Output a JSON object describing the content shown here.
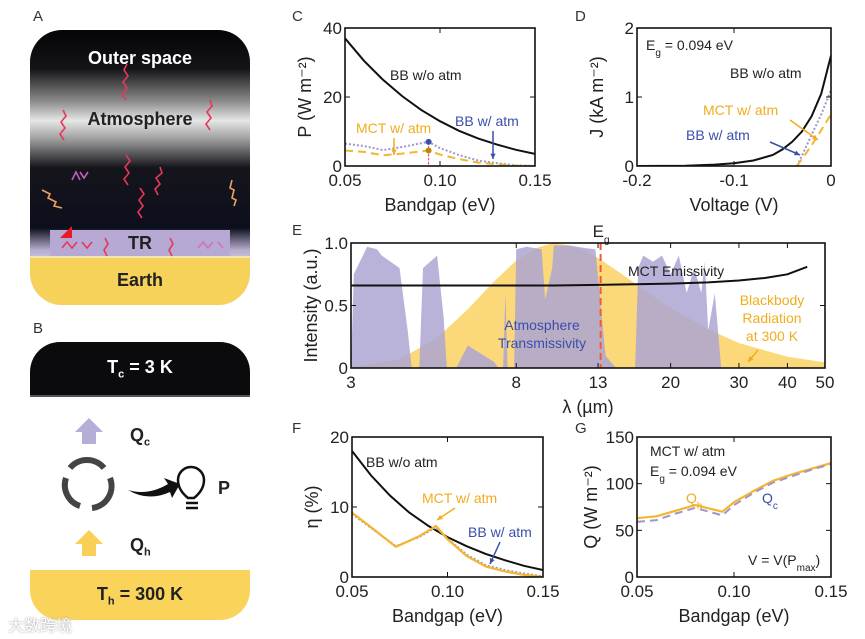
{
  "panel_letters": {
    "a": "A",
    "b": "B",
    "c": "C",
    "d": "D",
    "e": "E",
    "f": "F",
    "g": "G"
  },
  "panel_a": {
    "outer_space": "Outer space",
    "atmosphere": "Atmosphere",
    "tr": "TR",
    "earth": "Earth"
  },
  "panel_b": {
    "tc_main": "T",
    "tc_sub": "c",
    "tc_rest": " = 3 K",
    "th_main": "T",
    "th_sub": "h",
    "th_rest": " = 300 K",
    "qc_main": "Q",
    "qc_sub": "c",
    "qh_main": "Q",
    "qh_sub": "h",
    "p": "P"
  },
  "watermark": "大数跨境",
  "colors": {
    "black": "#111111",
    "mct": "#f4b531",
    "bbatm": "#9f97cc",
    "bbatm_text": "#3b4eab",
    "eg": "#ee5a3c",
    "bb_fill": "#fbd87a",
    "atm_fill": "#ada6d2"
  },
  "chart_data": [
    {
      "id": "C",
      "type": "line",
      "xlabel": "Bandgap (eV)",
      "ylabel": "P (W m⁻²)",
      "xlim": [
        0.05,
        0.15
      ],
      "ylim": [
        0,
        40
      ],
      "xticks": [
        0.05,
        0.1,
        0.15
      ],
      "xticklabels": [
        "0.05",
        "0.10",
        "0.15"
      ],
      "yticks": [
        0,
        20,
        40
      ],
      "yticklabels": [
        "0",
        "20",
        "40"
      ],
      "series": [
        {
          "name": "BB w/o atm",
          "style": "solid",
          "color": "#111111",
          "x": [
            0.05,
            0.06,
            0.07,
            0.08,
            0.09,
            0.1,
            0.11,
            0.12,
            0.13,
            0.14,
            0.15
          ],
          "y": [
            37,
            30.5,
            25,
            20.3,
            16.3,
            13,
            10.2,
            8,
            6.2,
            4.7,
            3.5
          ]
        },
        {
          "name": "BB w/ atm",
          "style": "dotted",
          "color": "#9f97cc",
          "x": [
            0.05,
            0.06,
            0.07,
            0.08,
            0.094,
            0.1,
            0.11,
            0.12,
            0.13,
            0.14,
            0.15
          ],
          "y": [
            6.5,
            5.8,
            4.6,
            5.5,
            7,
            5.2,
            3.2,
            1.6,
            0.8,
            0.2,
            0
          ]
        },
        {
          "name": "MCT w/ atm",
          "style": "dashed",
          "color": "#f4b531",
          "x": [
            0.05,
            0.06,
            0.07,
            0.08,
            0.094,
            0.1,
            0.11,
            0.12,
            0.13,
            0.14,
            0.15
          ],
          "y": [
            4.5,
            4.1,
            3.1,
            3.6,
            4.5,
            3.3,
            2,
            1,
            0.5,
            0.1,
            0
          ]
        }
      ],
      "markers": [
        {
          "x": 0.094,
          "y": 7,
          "color": "#3b4eab"
        },
        {
          "x": 0.094,
          "y": 4.5,
          "color": "#b8860b"
        }
      ],
      "annotations": {
        "bb_wo": "BB w/o atm",
        "bb_w": "BB w/ atm",
        "mct": "MCT w/ atm"
      }
    },
    {
      "id": "D",
      "type": "line",
      "xlabel": "Voltage (V)",
      "ylabel": "J (kA m⁻²)",
      "xlim": [
        -0.2,
        0
      ],
      "ylim": [
        0,
        2
      ],
      "xticks": [
        -0.2,
        -0.1,
        0
      ],
      "xticklabels": [
        "-0.2",
        "-0.1",
        "0"
      ],
      "yticks": [
        0,
        1,
        2
      ],
      "yticklabels": [
        "0",
        "1",
        "2"
      ],
      "series": [
        {
          "name": "BB w/o atm",
          "style": "solid",
          "color": "#111111",
          "x": [
            -0.2,
            -0.15,
            -0.12,
            -0.1,
            -0.08,
            -0.06,
            -0.05,
            -0.04,
            -0.03,
            -0.02,
            -0.01,
            0
          ],
          "y": [
            0,
            0.005,
            0.02,
            0.04,
            0.08,
            0.16,
            0.24,
            0.35,
            0.5,
            0.72,
            1.05,
            1.6
          ]
        },
        {
          "name": "BB w/ atm",
          "style": "dotted",
          "color": "#9f97cc",
          "x": [
            -0.035,
            -0.03,
            -0.02,
            -0.01,
            0
          ],
          "y": [
            0,
            0.15,
            0.45,
            0.75,
            1.1
          ]
        },
        {
          "name": "MCT w/ atm",
          "style": "dashed",
          "color": "#f4b531",
          "x": [
            -0.035,
            -0.03,
            -0.02,
            -0.01,
            0
          ],
          "y": [
            0,
            0.1,
            0.3,
            0.52,
            0.75
          ]
        }
      ],
      "annotations": {
        "eg_main": "E",
        "eg_sub": "g",
        "eg_rest": " = 0.094 eV",
        "bb_wo": "BB w/o atm",
        "mct": "MCT w/ atm",
        "bb_w": "BB w/ atm"
      }
    },
    {
      "id": "E",
      "type": "area",
      "xlabel": "λ (µm)",
      "ylabel": "Intensity (a.u.)",
      "xscale": "log",
      "xlim": [
        3,
        50
      ],
      "ylim": [
        0,
        1
      ],
      "xticks": [
        3,
        8,
        13,
        20,
        30,
        40,
        50
      ],
      "xticklabels": [
        "3",
        "8",
        "13",
        "20",
        "30",
        "40",
        "50"
      ],
      "yticks": [
        0,
        0.5,
        1
      ],
      "yticklabels": [
        "0",
        "0.5",
        "1.0"
      ],
      "series": [
        {
          "name": "Blackbody Radiation at 300 K",
          "style": "fill",
          "color": "#fbd87a",
          "x": [
            3,
            4,
            5,
            6,
            7,
            8,
            9,
            10,
            11,
            12,
            13,
            15,
            17,
            20,
            25,
            30,
            40,
            50
          ],
          "y": [
            0.006,
            0.07,
            0.24,
            0.47,
            0.69,
            0.86,
            0.96,
            1.0,
            0.98,
            0.94,
            0.88,
            0.75,
            0.63,
            0.48,
            0.31,
            0.2,
            0.09,
            0.045
          ]
        },
        {
          "name": "Atmosphere Transmissivity",
          "style": "fill",
          "color": "#ada6d2",
          "x": [
            3,
            3.05,
            3.3,
            3.5,
            3.6,
            4.0,
            4.2,
            4.3,
            4.5,
            4.6,
            4.8,
            5.0,
            5.2,
            5.3,
            5.6,
            6.0,
            6.6,
            7.0,
            7.2,
            7.4,
            7.5,
            7.6,
            7.9,
            8.0,
            8.5,
            9.3,
            9.5,
            9.9,
            10.0,
            11,
            12,
            12.8,
            13.3,
            13.6,
            14,
            14.5,
            16.2,
            16.5,
            17,
            18,
            19,
            20,
            21,
            22,
            23,
            24,
            24.5,
            25,
            26,
            27,
            50
          ],
          "y": [
            0,
            0.75,
            0.97,
            0.95,
            0.9,
            0.8,
            0.3,
            0,
            0,
            0.8,
            0.85,
            0.9,
            0.4,
            0,
            0,
            0.18,
            0.1,
            0.05,
            0,
            0,
            0.6,
            0,
            0,
            0.95,
            0.97,
            0.95,
            0.55,
            0.8,
            0.98,
            0.98,
            0.96,
            0.95,
            0.4,
            0.1,
            0.05,
            0,
            0,
            0.8,
            0.9,
            0.85,
            0.9,
            0.75,
            0.9,
            0.6,
            0.8,
            0.6,
            0.85,
            0.3,
            0.6,
            0,
            0
          ]
        },
        {
          "name": "MCT Emissivity",
          "style": "solid",
          "color": "#111111",
          "x": [
            3,
            10,
            13,
            16,
            20,
            25,
            30,
            35,
            40,
            45
          ],
          "y": [
            0.66,
            0.66,
            0.665,
            0.67,
            0.675,
            0.685,
            0.7,
            0.72,
            0.75,
            0.81
          ]
        }
      ],
      "eg_line": {
        "x": 13.2,
        "label_main": "E",
        "label_sub": "g"
      },
      "annotations": {
        "mct": "MCT Emissivity",
        "atm1": "Atmosphere",
        "atm2": "Transmissivity",
        "bb1": "Blackbody",
        "bb2": "Radiation",
        "bb3": "at 300 K"
      }
    },
    {
      "id": "F",
      "type": "line",
      "xlabel": "Bandgap (eV)",
      "ylabel": "η (%)",
      "xlim": [
        0.05,
        0.15
      ],
      "ylim": [
        0,
        20
      ],
      "xticks": [
        0.05,
        0.1,
        0.15
      ],
      "xticklabels": [
        "0.05",
        "0.10",
        "0.15"
      ],
      "yticks": [
        0,
        10,
        20
      ],
      "yticklabels": [
        "0",
        "10",
        "20"
      ],
      "series": [
        {
          "name": "BB w/o atm",
          "style": "solid",
          "color": "#111111",
          "x": [
            0.05,
            0.06,
            0.07,
            0.08,
            0.09,
            0.1,
            0.11,
            0.12,
            0.13,
            0.14,
            0.15
          ],
          "y": [
            18,
            14.5,
            11.6,
            9.2,
            7.3,
            5.7,
            4.4,
            3.3,
            2.4,
            1.6,
            1
          ]
        },
        {
          "name": "BB w/ atm",
          "style": "dotted",
          "color": "#9f97cc",
          "x": [
            0.05,
            0.06,
            0.073,
            0.085,
            0.094,
            0.1,
            0.11,
            0.12,
            0.13,
            0.14,
            0.15
          ],
          "y": [
            9,
            7,
            4.4,
            5.7,
            7.1,
            5.5,
            3.2,
            1.7,
            1,
            0.5,
            0.1
          ]
        },
        {
          "name": "MCT w/ atm",
          "style": "solid",
          "color": "#f4b531",
          "x": [
            0.05,
            0.06,
            0.073,
            0.085,
            0.094,
            0.1,
            0.11,
            0.12,
            0.13,
            0.14,
            0.15
          ],
          "y": [
            9.2,
            7.1,
            4.3,
            5.8,
            7.3,
            5.4,
            3,
            1.5,
            0.8,
            0.3,
            0
          ]
        }
      ],
      "annotations": {
        "bb_wo": "BB w/o atm",
        "mct": "MCT w/ atm",
        "bb_w": "BB w/ atm"
      }
    },
    {
      "id": "G",
      "type": "line",
      "xlabel": "Bandgap (eV)",
      "ylabel": "Q (W m⁻²)",
      "xlim": [
        0.05,
        0.15
      ],
      "ylim": [
        0,
        150
      ],
      "xticks": [
        0.05,
        0.1,
        0.15
      ],
      "xticklabels": [
        "0.05",
        "0.10",
        "0.15"
      ],
      "yticks": [
        0,
        50,
        100,
        150
      ],
      "yticklabels": [
        "0",
        "50",
        "100",
        "150"
      ],
      "series": [
        {
          "name": "Qh",
          "style": "solid",
          "color": "#f4b531",
          "x": [
            0.05,
            0.06,
            0.07,
            0.08,
            0.094,
            0.1,
            0.11,
            0.12,
            0.13,
            0.14,
            0.15
          ],
          "y": [
            63,
            65,
            71,
            77,
            70,
            80,
            92,
            103,
            110,
            116,
            122
          ]
        },
        {
          "name": "Qc",
          "style": "dashed",
          "color": "#9f97cc",
          "x": [
            0.05,
            0.06,
            0.07,
            0.08,
            0.094,
            0.1,
            0.11,
            0.12,
            0.13,
            0.14,
            0.15
          ],
          "y": [
            59,
            61,
            68,
            74,
            66,
            77,
            90,
            101,
            108,
            115,
            121
          ]
        }
      ],
      "annotations": {
        "title": "MCT w/ atm",
        "eg_main": "E",
        "eg_sub": "g",
        "eg_rest": " = 0.094 eV",
        "qh_main": "Q",
        "qh_sub": "h",
        "qc_main": "Q",
        "qc_sub": "c",
        "v_main": "V = V(P",
        "v_sub": "max",
        "v_end": ")"
      }
    }
  ]
}
